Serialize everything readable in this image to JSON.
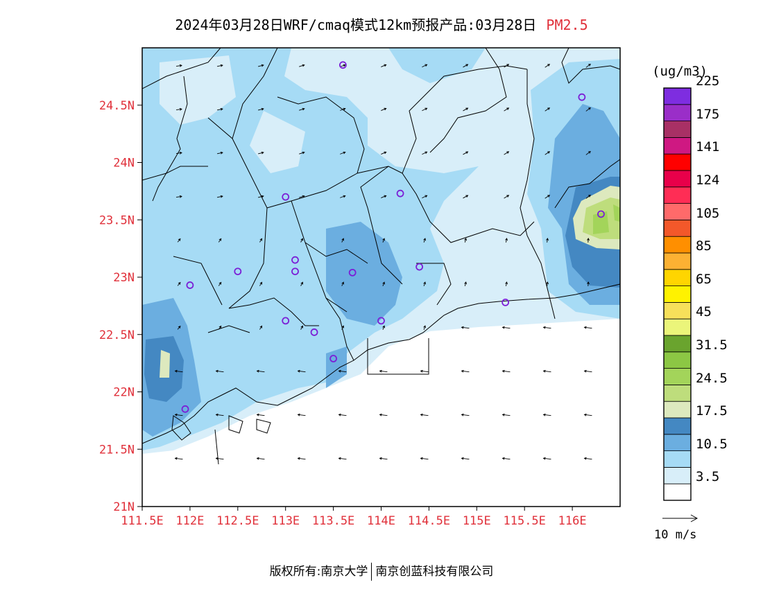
{
  "title": {
    "main": "2024年03月28日WRF/cmaq模式12km预报产品:03月28日",
    "pollutant": "PM2.5"
  },
  "map": {
    "lon_range": [
      111.5,
      116.5
    ],
    "lat_range": [
      21.0,
      25.0
    ],
    "lat_ticks": [
      "21N",
      "21.5N",
      "22N",
      "22.5N",
      "23N",
      "23.5N",
      "24N",
      "24.5N"
    ],
    "lon_ticks": [
      "111.5E",
      "112E",
      "112.5E",
      "113E",
      "113.5E",
      "114E",
      "114.5E",
      "115E",
      "115.5E",
      "116E"
    ],
    "axis_label_color": "#e0303a",
    "stations": [
      {
        "lon": 113.6,
        "lat": 24.85
      },
      {
        "lon": 116.1,
        "lat": 24.57
      },
      {
        "lon": 113.0,
        "lat": 23.7
      },
      {
        "lon": 114.2,
        "lat": 23.73
      },
      {
        "lon": 116.3,
        "lat": 23.55
      },
      {
        "lon": 113.1,
        "lat": 23.15
      },
      {
        "lon": 112.5,
        "lat": 23.05
      },
      {
        "lon": 113.1,
        "lat": 23.05
      },
      {
        "lon": 113.7,
        "lat": 23.04
      },
      {
        "lon": 114.4,
        "lat": 23.09
      },
      {
        "lon": 112.0,
        "lat": 22.93
      },
      {
        "lon": 115.3,
        "lat": 22.78
      },
      {
        "lon": 113.0,
        "lat": 22.62
      },
      {
        "lon": 114.0,
        "lat": 22.62
      },
      {
        "lon": 113.3,
        "lat": 22.52
      },
      {
        "lon": 113.5,
        "lat": 22.29
      },
      {
        "lon": 111.95,
        "lat": 21.85
      }
    ]
  },
  "colorbar": {
    "unit": "(ug/m3)",
    "colors": [
      "#ffffff",
      "#d8eef9",
      "#a6dbf5",
      "#6baee0",
      "#4488c2",
      "#dde9be",
      "#bedd7c",
      "#a3d45a",
      "#8cc744",
      "#6aa42e",
      "#ebf57a",
      "#f7e05a",
      "#fff200",
      "#ffd500",
      "#fcb133",
      "#ff8f00",
      "#f3582a",
      "#ff6a6a",
      "#ff2d55",
      "#e8004a",
      "#ff0000",
      "#cf1882",
      "#a83065",
      "#9a2ec8",
      "#7e2de0"
    ],
    "labels": [
      "3.5",
      "10.5",
      "17.5",
      "24.5",
      "31.5",
      "45",
      "65",
      "85",
      "105",
      "124",
      "141",
      "175",
      "225"
    ]
  },
  "wind_legend": {
    "label": "10  m/s"
  },
  "footer": {
    "left": "版权所有:南京大学",
    "right": "南京创蓝科技有限公司"
  }
}
